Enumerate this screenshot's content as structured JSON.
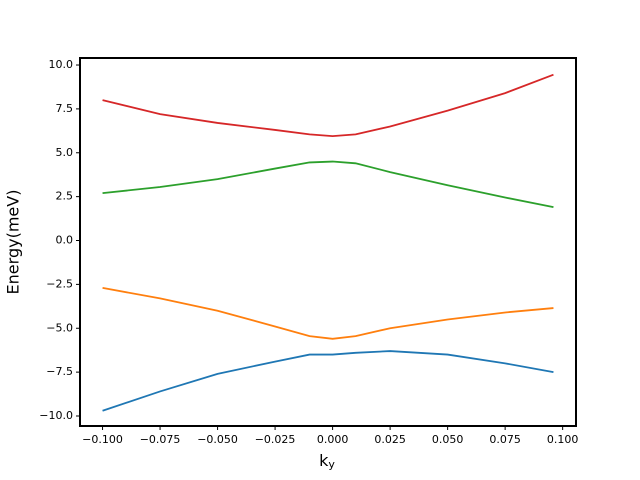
{
  "chart_data": {
    "type": "line",
    "xlabel": "k",
    "xlabel_sub": "y",
    "ylabel": "Energy(meV)",
    "x": [
      -0.1,
      -0.075,
      -0.05,
      -0.025,
      -0.01,
      0,
      0.01,
      0.025,
      0.05,
      0.075,
      0.096
    ],
    "series": [
      {
        "color": "#1f77b4",
        "values": [
          -9.7,
          -8.6,
          -7.6,
          -6.9,
          -6.5,
          -6.5,
          -6.4,
          -6.3,
          -6.5,
          -7.0,
          -7.5
        ]
      },
      {
        "color": "#ff7f0e",
        "values": [
          -2.7,
          -3.3,
          -4.0,
          -4.9,
          -5.45,
          -5.6,
          -5.45,
          -5.0,
          -4.5,
          -4.1,
          -3.85
        ]
      },
      {
        "color": "#2ca02c",
        "values": [
          2.7,
          3.05,
          3.5,
          4.1,
          4.45,
          4.5,
          4.4,
          3.9,
          3.15,
          2.45,
          1.9
        ]
      },
      {
        "color": "#d62728",
        "values": [
          8.0,
          7.2,
          6.7,
          6.3,
          6.05,
          5.95,
          6.05,
          6.5,
          7.4,
          8.4,
          9.45
        ]
      }
    ],
    "xlim": [
      -0.1098,
      0.1058
    ],
    "ylim": [
      -10.57,
      10.4
    ],
    "xticks": [
      {
        "value": -0.1,
        "label": "−0.100"
      },
      {
        "value": -0.075,
        "label": "−0.075"
      },
      {
        "value": -0.05,
        "label": "−0.050"
      },
      {
        "value": -0.025,
        "label": "−0.025"
      },
      {
        "value": 0,
        "label": "0.000"
      },
      {
        "value": 0.025,
        "label": "0.025"
      },
      {
        "value": 0.05,
        "label": "0.050"
      },
      {
        "value": 0.075,
        "label": "0.075"
      },
      {
        "value": 0.1,
        "label": "0.100"
      }
    ],
    "yticks": [
      {
        "value": -10,
        "label": "−10.0"
      },
      {
        "value": -7.5,
        "label": "−7.5"
      },
      {
        "value": -5,
        "label": "−5.0"
      },
      {
        "value": -2.5,
        "label": "−2.5"
      },
      {
        "value": 0,
        "label": "0.0"
      },
      {
        "value": 2.5,
        "label": "2.5"
      },
      {
        "value": 5,
        "label": "5.0"
      },
      {
        "value": 7.5,
        "label": "7.5"
      },
      {
        "value": 10,
        "label": "10.0"
      }
    ]
  }
}
